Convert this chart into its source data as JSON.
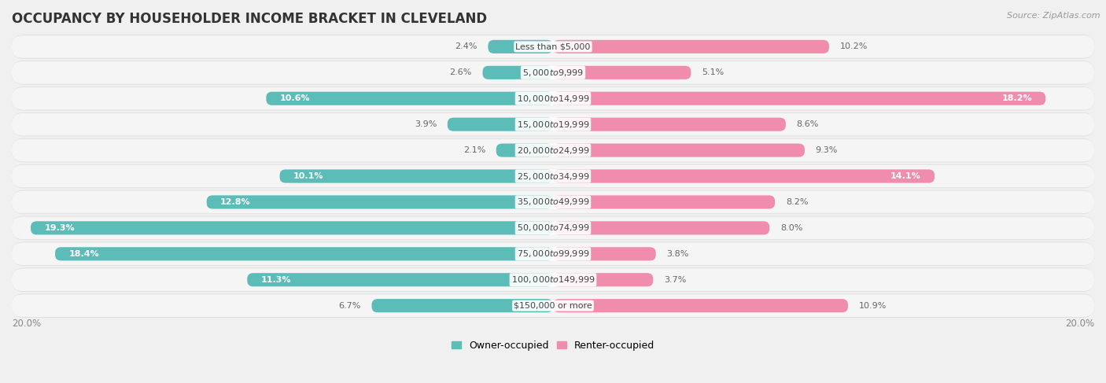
{
  "title": "OCCUPANCY BY HOUSEHOLDER INCOME BRACKET IN CLEVELAND",
  "source": "Source: ZipAtlas.com",
  "categories": [
    "Less than $5,000",
    "$5,000 to $9,999",
    "$10,000 to $14,999",
    "$15,000 to $19,999",
    "$20,000 to $24,999",
    "$25,000 to $34,999",
    "$35,000 to $49,999",
    "$50,000 to $74,999",
    "$75,000 to $99,999",
    "$100,000 to $149,999",
    "$150,000 or more"
  ],
  "owner_values": [
    2.4,
    2.6,
    10.6,
    3.9,
    2.1,
    10.1,
    12.8,
    19.3,
    18.4,
    11.3,
    6.7
  ],
  "renter_values": [
    10.2,
    5.1,
    18.2,
    8.6,
    9.3,
    14.1,
    8.2,
    8.0,
    3.8,
    3.7,
    10.9
  ],
  "owner_color": "#5bbcb8",
  "renter_color": "#f08cac",
  "owner_color_dark": "#3a9e9a",
  "renter_color_dark": "#e0507a",
  "bar_height": 0.52,
  "xlim": 20.0,
  "background_color": "#f0f0f0",
  "row_background": "#e8e8e8",
  "row_inner": "#f7f7f7",
  "legend_owner": "Owner-occupied",
  "legend_renter": "Renter-occupied",
  "axis_label_left": "20.0%",
  "axis_label_right": "20.0%",
  "title_fontsize": 12,
  "label_fontsize": 8,
  "category_fontsize": 8
}
